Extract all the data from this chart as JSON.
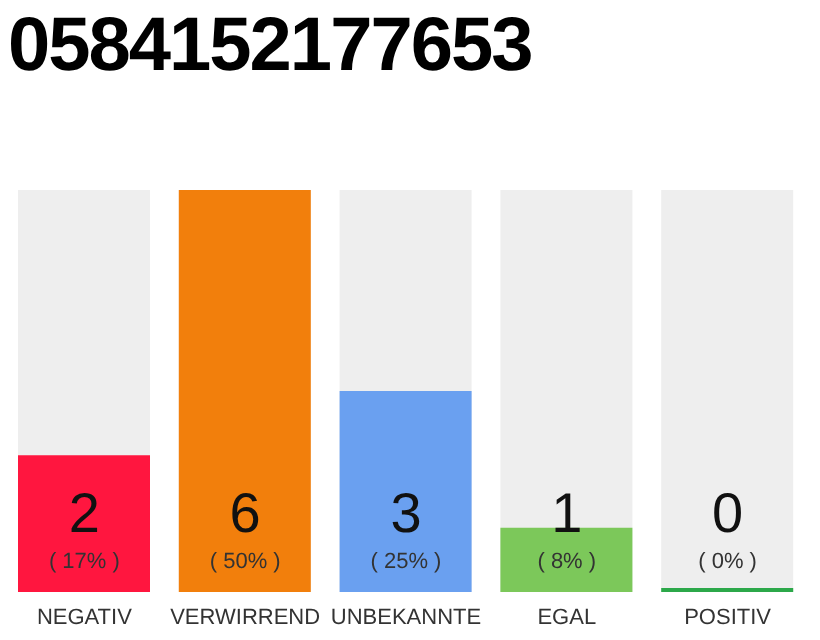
{
  "chart_data": {
    "type": "bar",
    "title": "0584152177653",
    "categories": [
      "NEGATIV",
      "VERWIRREND",
      "UNBEKANNTE",
      "EGAL",
      "POSITIV"
    ],
    "values": [
      17,
      50,
      25,
      8,
      0
    ],
    "colors": [
      "#ff163f",
      "#f27f0c",
      "#6aa0f0",
      "#7cc85a",
      "#2ca84a"
    ],
    "value_labels": [
      "( 17% )",
      "( 50% )",
      "( 25% )",
      "( 8% )",
      "( 0% )"
    ],
    "annotations": [
      "2",
      "6",
      "3",
      "1",
      "0"
    ]
  }
}
